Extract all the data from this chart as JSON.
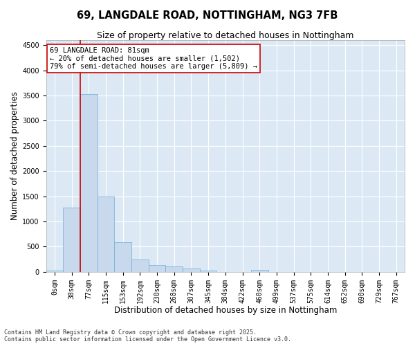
{
  "title_line1": "69, LANGDALE ROAD, NOTTINGHAM, NG3 7FB",
  "title_line2": "Size of property relative to detached houses in Nottingham",
  "xlabel": "Distribution of detached houses by size in Nottingham",
  "ylabel": "Number of detached properties",
  "bar_color": "#c8d9ed",
  "bar_edge_color": "#6baed6",
  "background_color": "#dce9f5",
  "grid_color": "#ffffff",
  "fig_background": "#ffffff",
  "categories": [
    "0sqm",
    "38sqm",
    "77sqm",
    "115sqm",
    "153sqm",
    "192sqm",
    "230sqm",
    "268sqm",
    "307sqm",
    "345sqm",
    "384sqm",
    "422sqm",
    "460sqm",
    "499sqm",
    "537sqm",
    "575sqm",
    "614sqm",
    "652sqm",
    "690sqm",
    "729sqm",
    "767sqm"
  ],
  "values": [
    25,
    1280,
    3530,
    1490,
    590,
    250,
    130,
    110,
    65,
    30,
    0,
    0,
    35,
    0,
    0,
    0,
    0,
    0,
    0,
    0,
    0
  ],
  "ylim": [
    0,
    4600
  ],
  "yticks": [
    0,
    500,
    1000,
    1500,
    2000,
    2500,
    3000,
    3500,
    4000,
    4500
  ],
  "vline_x_index": 2,
  "vline_color": "#cc0000",
  "annotation_text": "69 LANGDALE ROAD: 81sqm\n← 20% of detached houses are smaller (1,502)\n79% of semi-detached houses are larger (5,809) →",
  "annotation_box_color": "#ffffff",
  "annotation_box_edge": "#cc0000",
  "footnote": "Contains HM Land Registry data © Crown copyright and database right 2025.\nContains public sector information licensed under the Open Government Licence v3.0.",
  "title_fontsize": 10.5,
  "subtitle_fontsize": 9,
  "axis_label_fontsize": 8.5,
  "tick_fontsize": 7,
  "annotation_fontsize": 7.5,
  "footnote_fontsize": 6
}
